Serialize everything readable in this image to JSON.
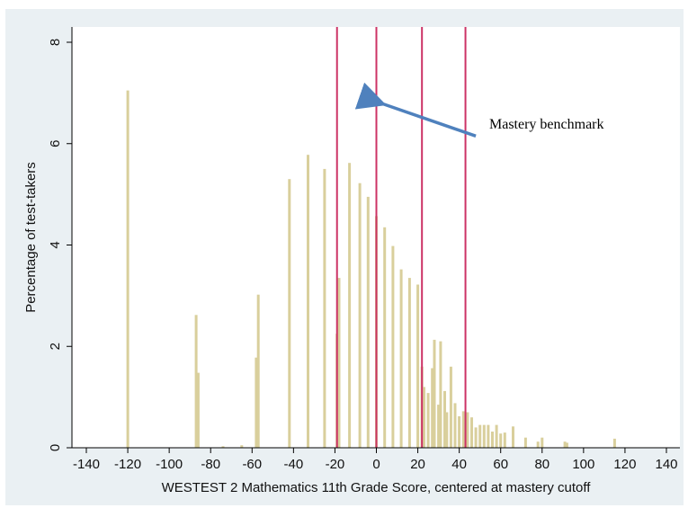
{
  "chart_data": {
    "type": "bar",
    "xlabel": "WESTEST 2 Mathematics 11th Grade Score, centered at mastery cutoff",
    "ylabel": "Percentage of test-takers",
    "xlim": [
      -140,
      140
    ],
    "ylim": [
      0,
      8
    ],
    "xticks": [
      "-140",
      "-120",
      "-100",
      "-80",
      "-60",
      "-40",
      "-20",
      "0",
      "20",
      "40",
      "60",
      "80",
      "100",
      "120",
      "140"
    ],
    "yticks": [
      "0",
      "2",
      "4",
      "6",
      "8"
    ],
    "bar_color": "#d9cf9c",
    "cutoff_color": "#cc3366",
    "arrow_color": "#4f81bd",
    "cutoff_lines": [
      -19,
      0,
      22,
      43
    ],
    "bars": [
      {
        "x": -120,
        "y": 7.05
      },
      {
        "x": -87,
        "y": 2.62
      },
      {
        "x": -86,
        "y": 1.48
      },
      {
        "x": -74,
        "y": 0.03
      },
      {
        "x": -65,
        "y": 0.05
      },
      {
        "x": -58,
        "y": 1.78
      },
      {
        "x": -57,
        "y": 3.02
      },
      {
        "x": -42,
        "y": 5.3
      },
      {
        "x": -33,
        "y": 5.78
      },
      {
        "x": -25,
        "y": 5.5
      },
      {
        "x": -19,
        "y": 2.25
      },
      {
        "x": -18,
        "y": 3.35
      },
      {
        "x": -13,
        "y": 5.62
      },
      {
        "x": -8,
        "y": 5.22
      },
      {
        "x": -4,
        "y": 4.95
      },
      {
        "x": 0,
        "y": 4.57
      },
      {
        "x": 4,
        "y": 4.35
      },
      {
        "x": 8,
        "y": 3.98
      },
      {
        "x": 12,
        "y": 3.52
      },
      {
        "x": 16,
        "y": 3.35
      },
      {
        "x": 20,
        "y": 3.22
      },
      {
        "x": 22,
        "y": 1.6
      },
      {
        "x": 23,
        "y": 1.2
      },
      {
        "x": 25,
        "y": 1.08
      },
      {
        "x": 27,
        "y": 1.57
      },
      {
        "x": 28,
        "y": 2.13
      },
      {
        "x": 30,
        "y": 0.85
      },
      {
        "x": 31,
        "y": 2.1
      },
      {
        "x": 33,
        "y": 1.12
      },
      {
        "x": 34,
        "y": 0.7
      },
      {
        "x": 36,
        "y": 1.6
      },
      {
        "x": 38,
        "y": 0.88
      },
      {
        "x": 40,
        "y": 0.62
      },
      {
        "x": 42,
        "y": 0.72
      },
      {
        "x": 44,
        "y": 0.7
      },
      {
        "x": 46,
        "y": 0.6
      },
      {
        "x": 48,
        "y": 0.4
      },
      {
        "x": 50,
        "y": 0.45
      },
      {
        "x": 52,
        "y": 0.45
      },
      {
        "x": 54,
        "y": 0.45
      },
      {
        "x": 56,
        "y": 0.32
      },
      {
        "x": 58,
        "y": 0.45
      },
      {
        "x": 60,
        "y": 0.28
      },
      {
        "x": 62,
        "y": 0.3
      },
      {
        "x": 66,
        "y": 0.42
      },
      {
        "x": 72,
        "y": 0.2
      },
      {
        "x": 78,
        "y": 0.12
      },
      {
        "x": 80,
        "y": 0.2
      },
      {
        "x": 91,
        "y": 0.12
      },
      {
        "x": 92,
        "y": 0.1
      },
      {
        "x": 115,
        "y": 0.18
      }
    ],
    "annotation": {
      "text": "Mastery benchmark",
      "arrow_to": {
        "x": 2,
        "y": 6.8
      },
      "arrow_from": {
        "x": 48,
        "y": 6.15
      }
    }
  }
}
